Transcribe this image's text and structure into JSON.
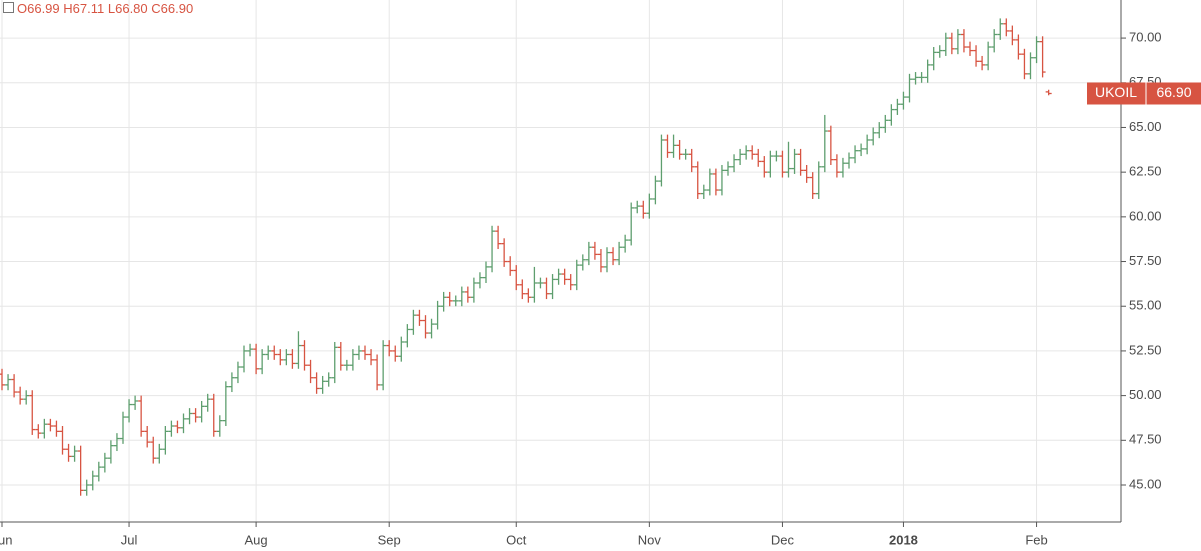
{
  "chart_data": {
    "type": "ohlc",
    "header": {
      "open": "O66.99",
      "high": "H67.11",
      "low": "L66.80",
      "close": "C66.90"
    },
    "symbol": "UKOIL",
    "last_price": {
      "value": 66.9,
      "label": "66.90"
    },
    "up_color": "#5e9e6e",
    "down_color": "#d75442",
    "grid": true,
    "ylim": [
      42.93,
      72.13
    ],
    "yticks": [
      {
        "value": 45,
        "label": "45.00"
      },
      {
        "value": 47.5,
        "label": "47.50"
      },
      {
        "value": 50,
        "label": "50.00"
      },
      {
        "value": 52.5,
        "label": "52.50"
      },
      {
        "value": 55,
        "label": "55.00"
      },
      {
        "value": 57.5,
        "label": "57.50"
      },
      {
        "value": 60,
        "label": "60.00"
      },
      {
        "value": 62.5,
        "label": "62.50"
      },
      {
        "value": 65,
        "label": "65.00"
      },
      {
        "value": 67.5,
        "label": "67.50"
      },
      {
        "value": 70,
        "label": "70.00"
      }
    ],
    "categories": [
      "Jun",
      null,
      null,
      null,
      null,
      null,
      null,
      null,
      null,
      null,
      null,
      null,
      null,
      null,
      null,
      null,
      null,
      null,
      null,
      null,
      null,
      "Jul",
      null,
      null,
      null,
      null,
      null,
      null,
      null,
      null,
      null,
      null,
      null,
      null,
      null,
      null,
      null,
      null,
      null,
      null,
      null,
      null,
      "Aug",
      null,
      null,
      null,
      null,
      null,
      null,
      null,
      null,
      null,
      null,
      null,
      null,
      null,
      null,
      null,
      null,
      null,
      null,
      null,
      null,
      null,
      "Sep",
      null,
      null,
      null,
      null,
      null,
      null,
      null,
      null,
      null,
      null,
      null,
      null,
      null,
      null,
      null,
      null,
      null,
      null,
      null,
      null,
      "Oct",
      null,
      null,
      null,
      null,
      null,
      null,
      null,
      null,
      null,
      null,
      null,
      null,
      null,
      null,
      null,
      null,
      null,
      null,
      null,
      null,
      null,
      "Nov",
      null,
      null,
      null,
      null,
      null,
      null,
      null,
      null,
      null,
      null,
      null,
      null,
      null,
      null,
      null,
      null,
      null,
      null,
      null,
      null,
      null,
      "Dec",
      null,
      null,
      null,
      null,
      null,
      null,
      null,
      null,
      null,
      null,
      null,
      null,
      null,
      null,
      null,
      null,
      null,
      null,
      null,
      "2018",
      null,
      null,
      null,
      null,
      null,
      null,
      null,
      null,
      null,
      null,
      null,
      null,
      null,
      null,
      null,
      null,
      null,
      null,
      null,
      null,
      null,
      "Feb",
      null,
      null
    ],
    "open": [
      51.2,
      50.6,
      50.9,
      50.2,
      49.8,
      50.0,
      48.1,
      47.9,
      48.4,
      48.3,
      48.0,
      47.0,
      46.6,
      46.9,
      44.7,
      45.0,
      45.5,
      46.0,
      46.5,
      47.2,
      47.6,
      48.8,
      49.5,
      49.7,
      48.0,
      47.4,
      46.5,
      47.0,
      48.0,
      48.3,
      48.2,
      48.7,
      49.0,
      48.8,
      49.4,
      49.8,
      48.0,
      48.6,
      50.5,
      51.0,
      51.6,
      52.5,
      52.6,
      51.5,
      52.3,
      52.5,
      52.3,
      52.0,
      52.3,
      51.8,
      52.8,
      51.7,
      51.0,
      50.4,
      50.8,
      51.0,
      52.7,
      51.7,
      51.7,
      52.3,
      52.5,
      52.3,
      52.0,
      50.6,
      52.8,
      52.5,
      52.2,
      53.0,
      53.7,
      54.5,
      54.2,
      53.5,
      54.0,
      55.0,
      55.5,
      55.3,
      55.3,
      55.8,
      55.5,
      56.3,
      56.6,
      57.2,
      59.2,
      58.5,
      57.5,
      57.0,
      56.2,
      55.7,
      55.5,
      56.3,
      56.3,
      55.7,
      56.5,
      56.8,
      56.5,
      56.2,
      57.3,
      57.6,
      58.3,
      57.9,
      57.2,
      58.0,
      57.6,
      58.3,
      58.7,
      60.5,
      60.6,
      60.2,
      61.0,
      62.0,
      64.3,
      63.6,
      64.0,
      63.5,
      63.5,
      62.8,
      61.3,
      61.5,
      62.4,
      61.5,
      62.6,
      62.8,
      63.2,
      63.5,
      63.7,
      63.5,
      63.1,
      62.5,
      63.4,
      63.4,
      62.5,
      62.7,
      63.5,
      62.6,
      62.2,
      61.3,
      62.8,
      64.8,
      63.2,
      62.5,
      63.0,
      63.3,
      63.7,
      63.8,
      64.3,
      64.7,
      65.0,
      65.4,
      66.0,
      66.3,
      66.7,
      67.7,
      67.8,
      67.8,
      68.5,
      69.2,
      69.3,
      70.0,
      69.4,
      70.2,
      69.5,
      69.3,
      68.7,
      68.5,
      69.5,
      70.2,
      70.8,
      70.4,
      69.9,
      69.1,
      68.0,
      68.9,
      69.8,
      66.99
    ],
    "high": [
      51.5,
      51.2,
      51.2,
      50.5,
      50.3,
      50.3,
      48.4,
      48.7,
      48.7,
      48.6,
      48.3,
      47.3,
      47.2,
      47.2,
      45.3,
      45.8,
      46.3,
      46.8,
      47.5,
      47.9,
      49.1,
      49.8,
      50.0,
      50.0,
      48.3,
      47.7,
      47.3,
      48.3,
      48.6,
      48.6,
      49.0,
      49.3,
      49.3,
      49.7,
      50.1,
      50.1,
      48.9,
      50.8,
      51.3,
      51.9,
      52.8,
      52.9,
      52.9,
      52.6,
      52.8,
      52.8,
      52.6,
      52.6,
      52.6,
      53.6,
      53.1,
      52.0,
      51.3,
      51.1,
      51.3,
      53.0,
      53.0,
      52.0,
      52.6,
      52.8,
      52.8,
      52.6,
      52.3,
      53.1,
      53.1,
      52.8,
      53.3,
      54.0,
      54.8,
      54.8,
      54.5,
      54.3,
      55.3,
      55.8,
      55.8,
      55.6,
      56.1,
      56.1,
      56.6,
      56.9,
      57.5,
      59.5,
      59.5,
      58.8,
      57.8,
      57.3,
      56.5,
      56.0,
      57.2,
      56.6,
      56.6,
      56.8,
      57.1,
      57.1,
      56.8,
      57.6,
      57.9,
      58.6,
      58.6,
      58.2,
      58.3,
      58.3,
      58.6,
      59.0,
      60.8,
      60.9,
      60.9,
      61.3,
      62.3,
      64.6,
      64.6,
      64.6,
      64.3,
      63.8,
      63.8,
      63.1,
      61.8,
      62.7,
      62.7,
      62.9,
      63.1,
      63.5,
      63.8,
      64.0,
      64.0,
      63.8,
      63.4,
      63.7,
      63.7,
      63.7,
      64.2,
      63.8,
      63.8,
      62.9,
      62.5,
      63.1,
      65.7,
      65.1,
      63.5,
      63.3,
      63.6,
      64.0,
      64.1,
      64.6,
      65.0,
      65.3,
      65.7,
      66.3,
      66.6,
      67.0,
      68.0,
      68.1,
      68.1,
      68.8,
      69.5,
      69.6,
      70.3,
      70.3,
      70.5,
      70.5,
      69.8,
      69.6,
      69.0,
      69.8,
      70.5,
      71.1,
      71.1,
      70.7,
      70.2,
      69.4,
      69.2,
      70.1,
      70.1,
      67.11
    ],
    "low": [
      50.3,
      50.3,
      49.9,
      49.5,
      49.5,
      47.8,
      47.6,
      47.6,
      48.0,
      47.7,
      46.7,
      46.3,
      46.3,
      44.4,
      44.4,
      44.7,
      45.2,
      45.7,
      46.2,
      46.9,
      47.3,
      48.5,
      49.2,
      47.7,
      47.1,
      46.2,
      46.2,
      46.7,
      47.7,
      47.9,
      47.9,
      48.4,
      48.5,
      48.5,
      49.1,
      47.7,
      47.7,
      48.3,
      50.2,
      50.7,
      51.3,
      52.2,
      51.2,
      51.2,
      52.0,
      52.0,
      51.7,
      51.7,
      51.5,
      51.5,
      51.4,
      50.7,
      50.1,
      50.1,
      50.5,
      50.7,
      51.4,
      51.4,
      51.4,
      52.0,
      52.0,
      51.7,
      50.3,
      50.3,
      52.2,
      51.9,
      51.9,
      52.7,
      53.4,
      53.9,
      53.2,
      53.2,
      53.7,
      54.7,
      55.0,
      55.0,
      55.0,
      55.2,
      55.2,
      56.0,
      56.3,
      56.9,
      58.2,
      57.2,
      56.7,
      55.9,
      55.4,
      55.2,
      55.2,
      56.0,
      55.4,
      55.4,
      56.2,
      56.2,
      55.9,
      55.9,
      57.0,
      57.3,
      57.6,
      56.9,
      56.9,
      57.3,
      57.3,
      58.0,
      58.4,
      60.2,
      59.9,
      59.9,
      60.7,
      61.7,
      63.3,
      63.3,
      63.2,
      63.2,
      62.5,
      61.0,
      61.0,
      61.2,
      61.2,
      61.2,
      62.3,
      62.5,
      62.9,
      63.2,
      63.2,
      62.8,
      62.2,
      62.2,
      63.1,
      62.2,
      62.2,
      62.4,
      62.3,
      61.9,
      61.0,
      61.0,
      62.5,
      62.9,
      62.2,
      62.2,
      62.7,
      63.0,
      63.4,
      63.5,
      64.0,
      64.4,
      64.7,
      65.1,
      65.7,
      66.0,
      66.4,
      67.4,
      67.5,
      67.5,
      68.2,
      68.9,
      69.0,
      69.1,
      69.1,
      69.2,
      69.0,
      68.4,
      68.2,
      68.2,
      69.2,
      69.9,
      70.1,
      69.6,
      68.8,
      67.7,
      67.7,
      68.6,
      67.8,
      66.8
    ],
    "close": [
      50.6,
      50.9,
      50.2,
      49.8,
      50.0,
      48.1,
      47.9,
      48.4,
      48.3,
      48.0,
      47.0,
      46.6,
      46.9,
      44.7,
      45.0,
      45.5,
      46.0,
      46.5,
      47.2,
      47.6,
      48.8,
      49.5,
      49.7,
      48.0,
      47.4,
      46.5,
      47.0,
      48.0,
      48.3,
      48.2,
      48.7,
      49.0,
      48.8,
      49.4,
      49.8,
      48.0,
      48.6,
      50.5,
      51.0,
      51.6,
      52.5,
      52.6,
      51.5,
      52.3,
      52.5,
      52.3,
      52.0,
      52.3,
      51.8,
      52.8,
      51.7,
      51.0,
      50.4,
      50.8,
      51.0,
      52.7,
      51.7,
      51.7,
      52.3,
      52.5,
      52.3,
      52.0,
      50.6,
      52.8,
      52.5,
      52.2,
      53.0,
      53.7,
      54.5,
      54.2,
      53.5,
      54.0,
      55.0,
      55.5,
      55.3,
      55.3,
      55.8,
      55.5,
      56.3,
      56.6,
      57.2,
      59.2,
      58.5,
      57.5,
      57.0,
      56.2,
      55.7,
      55.5,
      56.3,
      56.3,
      55.7,
      56.5,
      56.8,
      56.5,
      56.2,
      57.3,
      57.6,
      58.3,
      57.9,
      57.2,
      58.0,
      57.6,
      58.3,
      58.7,
      60.5,
      60.6,
      60.2,
      61.0,
      62.0,
      64.3,
      63.6,
      64.0,
      63.5,
      63.5,
      62.8,
      61.3,
      61.5,
      62.4,
      61.5,
      62.6,
      62.8,
      63.2,
      63.5,
      63.7,
      63.5,
      63.1,
      62.5,
      63.4,
      63.4,
      62.5,
      62.7,
      63.5,
      62.6,
      62.2,
      61.3,
      62.8,
      64.8,
      63.2,
      62.5,
      63.0,
      63.3,
      63.7,
      63.8,
      64.3,
      64.7,
      65.0,
      65.4,
      66.0,
      66.3,
      66.7,
      67.7,
      67.8,
      67.8,
      68.5,
      69.2,
      69.3,
      70.0,
      69.4,
      70.2,
      69.5,
      69.3,
      68.7,
      68.5,
      69.5,
      70.2,
      70.8,
      70.4,
      69.9,
      69.1,
      68.0,
      68.9,
      69.8,
      68.1,
      66.9
    ]
  }
}
